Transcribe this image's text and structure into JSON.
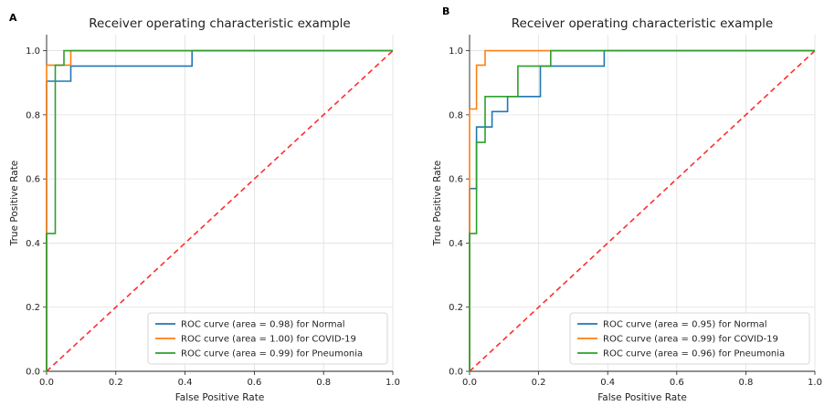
{
  "colors": {
    "series1": "#1f77b4",
    "series2": "#ff7f0e",
    "series3": "#2ca02c",
    "diagonal": "#ff2d2d"
  },
  "chart_data": [
    {
      "panel_label": "A",
      "type": "line",
      "title": "Receiver operating characteristic example",
      "xlabel": "False Positive Rate",
      "ylabel": "True Positive Rate",
      "xlim": [
        0,
        1.0
      ],
      "ylim": [
        0,
        1.05
      ],
      "xticks": [
        "0.0",
        "0.2",
        "0.4",
        "0.6",
        "0.8",
        "1.0"
      ],
      "yticks": [
        "0.0",
        "0.2",
        "0.4",
        "0.6",
        "0.8",
        "1.0"
      ],
      "grid": true,
      "legend_position": "lower-right",
      "diagonal": [
        [
          0,
          0
        ],
        [
          1,
          1
        ]
      ],
      "series": [
        {
          "name": "ROC curve (area = 0.98) for Normal",
          "x": [
            0,
            0,
            0.07,
            0.07,
            0.42,
            0.42,
            1.0
          ],
          "y": [
            0,
            0.905,
            0.905,
            0.952,
            0.952,
            1.0,
            1.0
          ]
        },
        {
          "name": "ROC curve (area = 1.00) for COVID-19",
          "x": [
            0,
            0,
            0.07,
            0.07,
            1.0
          ],
          "y": [
            0,
            0.955,
            0.955,
            1.0,
            1.0
          ]
        },
        {
          "name": "ROC curve (area = 0.99) for Pneumonia",
          "x": [
            0,
            0,
            0.025,
            0.025,
            0.05,
            0.05,
            1.0
          ],
          "y": [
            0,
            0.43,
            0.43,
            0.955,
            0.955,
            1.0,
            1.0
          ]
        }
      ]
    },
    {
      "panel_label": "B",
      "type": "line",
      "title": "Receiver operating characteristic example",
      "xlabel": "False Positive Rate",
      "ylabel": "True Positive Rate",
      "xlim": [
        0,
        1.0
      ],
      "ylim": [
        0,
        1.05
      ],
      "xticks": [
        "0.0",
        "0.2",
        "0.4",
        "0.6",
        "0.8",
        "1.0"
      ],
      "yticks": [
        "0.0",
        "0.2",
        "0.4",
        "0.6",
        "0.8",
        "1.0"
      ],
      "grid": true,
      "legend_position": "lower-right",
      "diagonal": [
        [
          0,
          0
        ],
        [
          1,
          1
        ]
      ],
      "series": [
        {
          "name": "ROC curve (area = 0.95) for Normal",
          "x": [
            0,
            0,
            0.02,
            0.02,
            0.045,
            0.045,
            0.065,
            0.065,
            0.11,
            0.11,
            0.205,
            0.205,
            0.39,
            0.39,
            1.0
          ],
          "y": [
            0,
            0.57,
            0.57,
            0.762,
            0.762,
            0.762,
            0.762,
            0.81,
            0.81,
            0.857,
            0.857,
            0.952,
            0.952,
            1.0,
            1.0
          ]
        },
        {
          "name": "ROC curve (area = 0.99) for COVID-19",
          "x": [
            0,
            0,
            0.02,
            0.02,
            0.045,
            0.045,
            1.0
          ],
          "y": [
            0,
            0.818,
            0.818,
            0.955,
            0.955,
            1.0,
            1.0
          ]
        },
        {
          "name": "ROC curve (area = 0.96) for Pneumonia",
          "x": [
            0,
            0,
            0.02,
            0.02,
            0.045,
            0.045,
            0.14,
            0.14,
            0.235,
            0.235,
            1.0
          ],
          "y": [
            0,
            0.43,
            0.43,
            0.714,
            0.714,
            0.857,
            0.857,
            0.952,
            0.952,
            1.0,
            1.0
          ]
        }
      ]
    }
  ]
}
